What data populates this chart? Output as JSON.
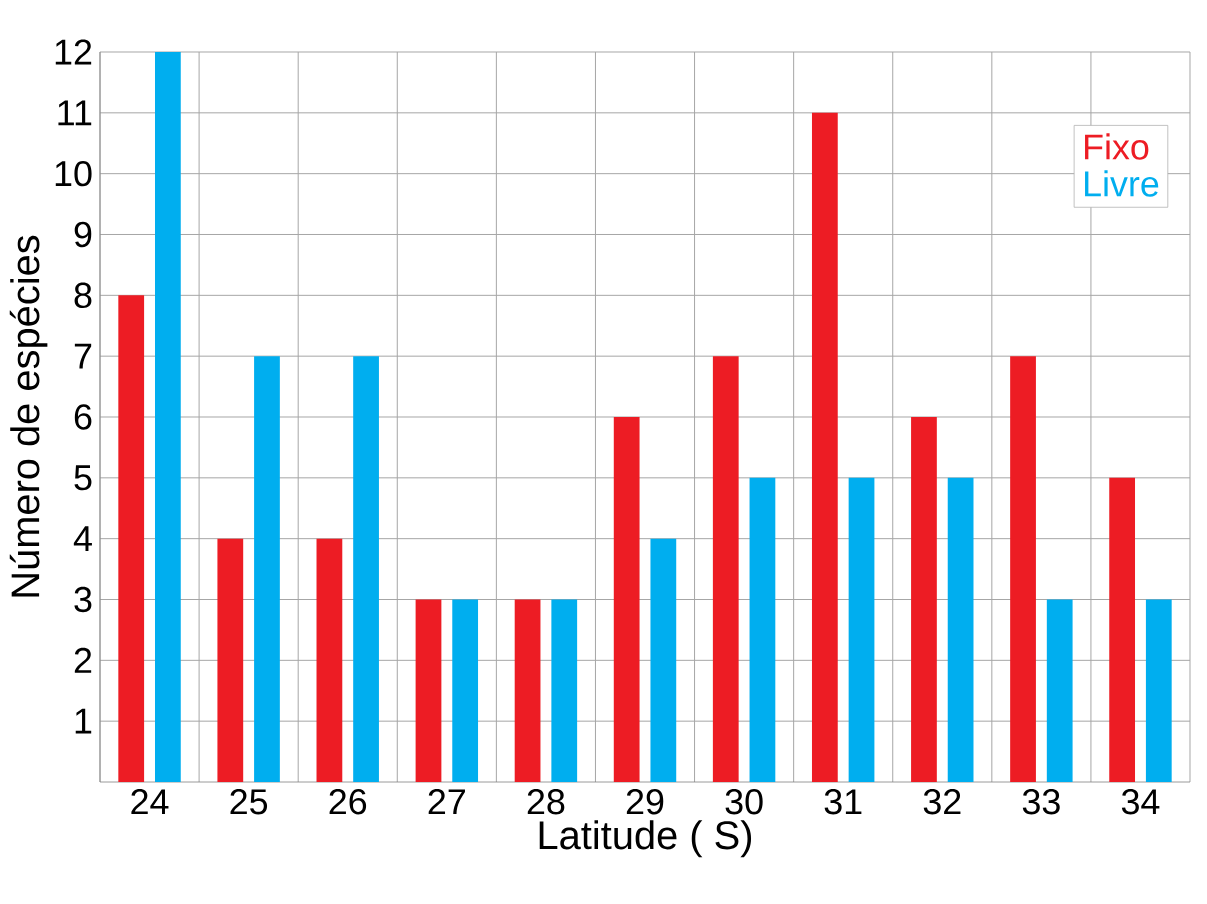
{
  "chart_data": {
    "type": "bar",
    "xlabel": "Latitude ( S)",
    "ylabel": "Número de espécies",
    "categories": [
      "24",
      "25",
      "26",
      "27",
      "28",
      "29",
      "30",
      "31",
      "32",
      "33",
      "34"
    ],
    "series": [
      {
        "name": "Fixo",
        "color": "#ed1c24",
        "values": [
          8,
          4,
          4,
          3,
          3,
          6,
          7,
          11,
          6,
          7,
          5
        ]
      },
      {
        "name": "Livre",
        "color": "#00aeef",
        "values": [
          12,
          7,
          7,
          3,
          3,
          4,
          5,
          5,
          5,
          3,
          3
        ]
      }
    ],
    "ylim": [
      0,
      12
    ],
    "yticks": [
      1,
      2,
      3,
      4,
      5,
      6,
      7,
      8,
      9,
      10,
      11,
      12
    ],
    "grid": true,
    "legend": "top right"
  }
}
